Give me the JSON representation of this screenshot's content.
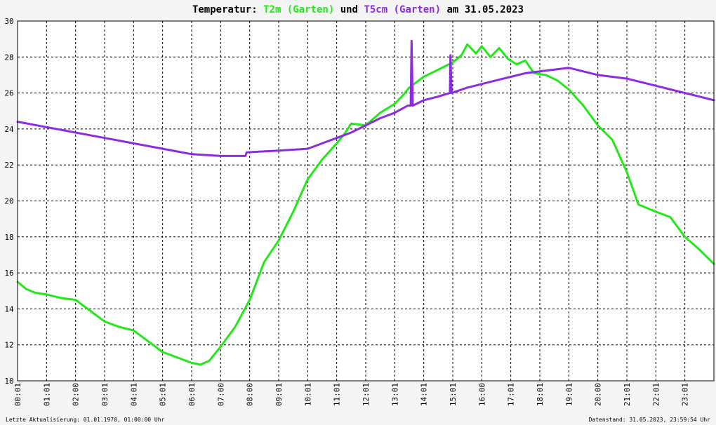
{
  "chart_data": {
    "type": "line",
    "title": {
      "prefix": "Temperatur:",
      "series1": "T2m (Garten)",
      "conj": "und",
      "series2": "T5cm (Garten)",
      "suffix": "am 31.05.2023"
    },
    "ylim": [
      10,
      30
    ],
    "xlim": [
      0,
      24
    ],
    "grid": true,
    "y_ticks": [
      "10",
      "12",
      "14",
      "16",
      "18",
      "20",
      "22",
      "24",
      "26",
      "28",
      "30"
    ],
    "x_ticks": [
      "00:01",
      "01:01",
      "02:00",
      "03:01",
      "04:01",
      "05:01",
      "06:01",
      "07:00",
      "08:00",
      "09:01",
      "10:01",
      "11:01",
      "12:01",
      "13:01",
      "14:01",
      "15:01",
      "16:00",
      "17:01",
      "18:01",
      "19:01",
      "20:00",
      "21:01",
      "22:01",
      "23:01"
    ],
    "series": [
      {
        "name": "T2m (Garten)",
        "color": "#22e81a",
        "points": [
          [
            0,
            15.5
          ],
          [
            0.3,
            15.1
          ],
          [
            0.6,
            14.9
          ],
          [
            1,
            14.8
          ],
          [
            1.5,
            14.6
          ],
          [
            2,
            14.5
          ],
          [
            2.5,
            13.9
          ],
          [
            3,
            13.3
          ],
          [
            3.5,
            13.0
          ],
          [
            4,
            12.8
          ],
          [
            4.5,
            12.2
          ],
          [
            5,
            11.6
          ],
          [
            5.5,
            11.3
          ],
          [
            6,
            11.0
          ],
          [
            6.3,
            10.9
          ],
          [
            6.6,
            11.1
          ],
          [
            7,
            11.9
          ],
          [
            7.5,
            13.0
          ],
          [
            8,
            14.5
          ],
          [
            8.5,
            16.6
          ],
          [
            9,
            17.8
          ],
          [
            9.5,
            19.4
          ],
          [
            10,
            21.2
          ],
          [
            10.5,
            22.3
          ],
          [
            11,
            23.2
          ],
          [
            11.3,
            23.8
          ],
          [
            11.5,
            24.3
          ],
          [
            12,
            24.2
          ],
          [
            12.5,
            24.9
          ],
          [
            13,
            25.4
          ],
          [
            13.3,
            25.9
          ],
          [
            13.5,
            26.3
          ],
          [
            14,
            26.9
          ],
          [
            14.5,
            27.3
          ],
          [
            15,
            27.7
          ],
          [
            15.3,
            28.1
          ],
          [
            15.5,
            28.7
          ],
          [
            15.8,
            28.2
          ],
          [
            16,
            28.6
          ],
          [
            16.3,
            28.0
          ],
          [
            16.6,
            28.5
          ],
          [
            16.9,
            27.9
          ],
          [
            17.2,
            27.6
          ],
          [
            17.5,
            27.8
          ],
          [
            17.8,
            27.1
          ],
          [
            18.2,
            27.0
          ],
          [
            18.6,
            26.7
          ],
          [
            19,
            26.2
          ],
          [
            19.5,
            25.3
          ],
          [
            20,
            24.2
          ],
          [
            20.5,
            23.4
          ],
          [
            21,
            21.6
          ],
          [
            21.4,
            19.8
          ],
          [
            22,
            19.4
          ],
          [
            22.5,
            19.1
          ],
          [
            23,
            18.0
          ],
          [
            23.5,
            17.3
          ],
          [
            24,
            16.5
          ]
        ]
      },
      {
        "name": "T5cm (Garten)",
        "color": "#8c2be2",
        "points": [
          [
            0,
            24.4
          ],
          [
            1,
            24.1
          ],
          [
            2,
            23.8
          ],
          [
            3,
            23.5
          ],
          [
            4,
            23.2
          ],
          [
            5,
            22.9
          ],
          [
            6,
            22.6
          ],
          [
            7,
            22.5
          ],
          [
            7.85,
            22.5
          ],
          [
            7.9,
            22.7
          ],
          [
            9,
            22.8
          ],
          [
            10,
            22.9
          ],
          [
            10.5,
            23.2
          ],
          [
            11,
            23.5
          ],
          [
            11.5,
            23.8
          ],
          [
            12,
            24.2
          ],
          [
            12.5,
            24.6
          ],
          [
            13,
            24.9
          ],
          [
            13.45,
            25.3
          ],
          [
            13.55,
            25.3
          ],
          [
            13.58,
            28.9
          ],
          [
            13.62,
            25.3
          ],
          [
            14,
            25.6
          ],
          [
            14.5,
            25.8
          ],
          [
            14.9,
            26.0
          ],
          [
            14.92,
            28.1
          ],
          [
            14.96,
            26.0
          ],
          [
            15.5,
            26.3
          ],
          [
            16,
            26.5
          ],
          [
            16.5,
            26.7
          ],
          [
            17,
            26.9
          ],
          [
            17.5,
            27.1
          ],
          [
            18,
            27.2
          ],
          [
            18.5,
            27.3
          ],
          [
            19,
            27.4
          ],
          [
            19.5,
            27.2
          ],
          [
            20,
            27.0
          ],
          [
            20.5,
            26.9
          ],
          [
            21,
            26.8
          ],
          [
            21.5,
            26.6
          ],
          [
            22,
            26.4
          ],
          [
            22.5,
            26.2
          ],
          [
            23,
            26.0
          ],
          [
            23.5,
            25.8
          ],
          [
            24,
            25.6
          ]
        ]
      }
    ]
  },
  "footer": {
    "left": "Letzte Aktualisierung: 01.01.1970, 01:00:00 Uhr",
    "right": "Datenstand: 31.05.2023, 23:59:54 Uhr"
  }
}
